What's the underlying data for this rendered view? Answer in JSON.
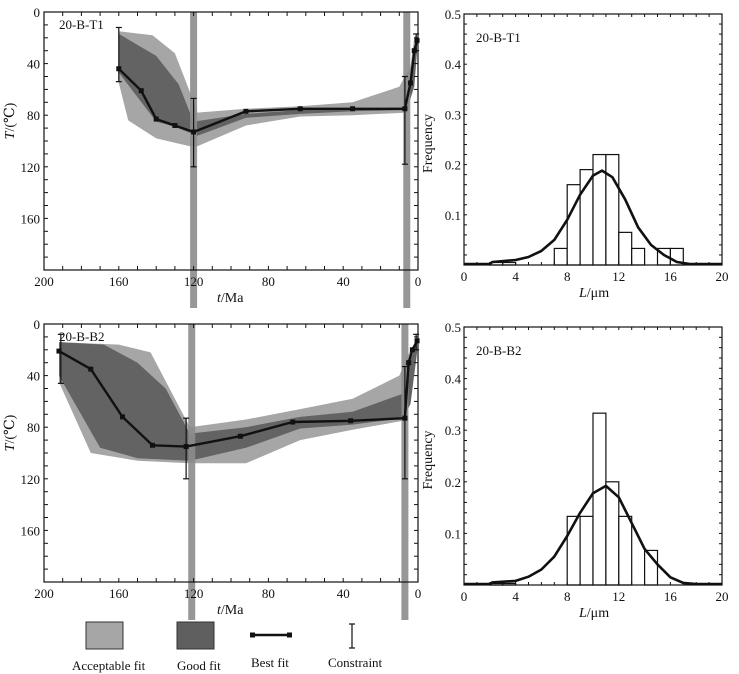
{
  "chart_data": [
    {
      "id": "tt_T1",
      "type": "line",
      "panel_label": "20-B-T1",
      "xlabel_italic": "t",
      "xlabel_rest": "/Ma",
      "ylabel_italic": "T",
      "ylabel_rest": "/(℃)",
      "xlim": [
        200,
        0
      ],
      "ylim": [
        0,
        200
      ],
      "x_ticks": [
        200,
        160,
        120,
        80,
        40,
        0
      ],
      "y_ticks": [
        0,
        40,
        80,
        120,
        160
      ],
      "grid": false,
      "vertical_bands": [
        120,
        6
      ],
      "acceptable_fit_envelope": {
        "upper": [
          [
            160,
            15
          ],
          [
            142,
            18
          ],
          [
            130,
            32
          ],
          [
            122,
            62
          ],
          [
            118,
            78
          ],
          [
            92,
            75
          ],
          [
            63,
            73
          ],
          [
            35,
            70
          ],
          [
            10,
            58
          ],
          [
            4,
            42
          ],
          [
            2,
            20
          ],
          [
            0.5,
            17
          ]
        ],
        "lower": [
          [
            0.5,
            25
          ],
          [
            2,
            55
          ],
          [
            6,
            78
          ],
          [
            35,
            80
          ],
          [
            63,
            81
          ],
          [
            92,
            88
          ],
          [
            118,
            104
          ],
          [
            122,
            104
          ],
          [
            140,
            98
          ],
          [
            155,
            84
          ],
          [
            160,
            55
          ]
        ]
      },
      "good_fit_envelope": {
        "upper": [
          [
            160,
            17
          ],
          [
            140,
            34
          ],
          [
            128,
            56
          ],
          [
            120,
            85
          ],
          [
            92,
            79
          ],
          [
            63,
            76
          ],
          [
            35,
            75
          ],
          [
            8,
            74
          ],
          [
            4,
            50
          ],
          [
            2,
            28
          ],
          [
            0.5,
            22
          ]
        ],
        "lower": [
          [
            0.5,
            30
          ],
          [
            2,
            58
          ],
          [
            6,
            76
          ],
          [
            35,
            77
          ],
          [
            63,
            79
          ],
          [
            92,
            82
          ],
          [
            118,
            96
          ],
          [
            130,
            89
          ],
          [
            140,
            85
          ],
          [
            160,
            47
          ]
        ]
      },
      "best_fit": [
        [
          160,
          44
        ],
        [
          148,
          61
        ],
        [
          140,
          83
        ],
        [
          130,
          88
        ],
        [
          120,
          93
        ],
        [
          92,
          77
        ],
        [
          63,
          75
        ],
        [
          35,
          75
        ],
        [
          7,
          75
        ],
        [
          4,
          55
        ],
        [
          2,
          30
        ],
        [
          0.5,
          22
        ]
      ],
      "constraints": [
        {
          "t": 160,
          "T_min": 12,
          "T_max": 54
        },
        {
          "t": 120,
          "T_min": 67,
          "T_max": 120
        },
        {
          "t": 7,
          "T_min": 50,
          "T_max": 118
        },
        {
          "t": 1,
          "T_min": 17,
          "T_max": 30
        }
      ]
    },
    {
      "id": "tt_B2",
      "type": "line",
      "panel_label": "20-B-B2",
      "xlabel_italic": "t",
      "xlabel_rest": "/Ma",
      "ylabel_italic": "T",
      "ylabel_rest": "/(℃)",
      "xlim": [
        200,
        0
      ],
      "ylim": [
        0,
        200
      ],
      "x_ticks": [
        200,
        160,
        120,
        80,
        40,
        0
      ],
      "y_ticks": [
        0,
        40,
        80,
        120,
        160
      ],
      "grid": false,
      "vertical_bands": [
        121,
        7
      ],
      "acceptable_fit_envelope": {
        "upper": [
          [
            192,
            14
          ],
          [
            160,
            16
          ],
          [
            143,
            22
          ],
          [
            130,
            58
          ],
          [
            122,
            80
          ],
          [
            92,
            74
          ],
          [
            63,
            66
          ],
          [
            35,
            58
          ],
          [
            10,
            40
          ],
          [
            4,
            20
          ],
          [
            0.5,
            12
          ]
        ],
        "lower": [
          [
            0.5,
            20
          ],
          [
            4,
            60
          ],
          [
            8,
            75
          ],
          [
            35,
            82
          ],
          [
            63,
            90
          ],
          [
            92,
            108
          ],
          [
            122,
            108
          ],
          [
            150,
            106
          ],
          [
            175,
            100
          ],
          [
            192,
            45
          ]
        ]
      },
      "good_fit_envelope": {
        "upper": [
          [
            192,
            14
          ],
          [
            168,
            16
          ],
          [
            150,
            30
          ],
          [
            135,
            50
          ],
          [
            122,
            85
          ],
          [
            92,
            80
          ],
          [
            63,
            72
          ],
          [
            35,
            68
          ],
          [
            8,
            54
          ],
          [
            4,
            28
          ],
          [
            0.5,
            14
          ]
        ],
        "lower": [
          [
            0.5,
            22
          ],
          [
            4,
            62
          ],
          [
            8,
            73
          ],
          [
            35,
            78
          ],
          [
            63,
            81
          ],
          [
            92,
            96
          ],
          [
            122,
            106
          ],
          [
            150,
            104
          ],
          [
            170,
            96
          ],
          [
            192,
            40
          ]
        ]
      },
      "best_fit": [
        [
          192,
          21
        ],
        [
          175,
          35
        ],
        [
          158,
          72
        ],
        [
          142,
          94
        ],
        [
          124,
          95
        ],
        [
          95,
          87
        ],
        [
          67,
          76
        ],
        [
          36,
          75
        ],
        [
          7,
          73
        ],
        [
          5,
          30
        ],
        [
          3,
          20
        ],
        [
          0.5,
          13
        ]
      ],
      "constraints": [
        {
          "t": 191,
          "T_min": 8,
          "T_max": 46
        },
        {
          "t": 124,
          "T_min": 73,
          "T_max": 120
        },
        {
          "t": 7,
          "T_min": 33,
          "T_max": 120
        },
        {
          "t": 1,
          "T_min": 8,
          "T_max": 20
        }
      ]
    },
    {
      "id": "hist_T1",
      "type": "bar",
      "panel_label": "20-B-T1",
      "xlabel_italic": "L",
      "xlabel_rest": "/μm",
      "ylabel": "Frequency",
      "xlim": [
        0,
        20
      ],
      "ylim": [
        0,
        0.5
      ],
      "x_ticks": [
        0,
        4,
        8,
        12,
        16,
        20
      ],
      "y_ticks": [
        0.1,
        0.2,
        0.3,
        0.4,
        0.5
      ],
      "bin_edges": [
        2,
        3,
        4,
        5,
        6,
        7,
        8,
        9,
        10,
        11,
        12,
        13,
        14,
        15,
        16,
        17
      ],
      "values": [
        0.005,
        0.005,
        0,
        0,
        0,
        0.033,
        0.16,
        0.19,
        0.22,
        0.22,
        0.065,
        0.033,
        0,
        0.033,
        0.033
      ],
      "fit_curve": [
        [
          0,
          0.002
        ],
        [
          2,
          0.002
        ],
        [
          2.2,
          0.006
        ],
        [
          4,
          0.01
        ],
        [
          5,
          0.016
        ],
        [
          6,
          0.028
        ],
        [
          7,
          0.05
        ],
        [
          8,
          0.09
        ],
        [
          9,
          0.14
        ],
        [
          10,
          0.178
        ],
        [
          10.7,
          0.188
        ],
        [
          11.5,
          0.175
        ],
        [
          12.5,
          0.13
        ],
        [
          13.5,
          0.075
        ],
        [
          14.5,
          0.04
        ],
        [
          15.5,
          0.02
        ],
        [
          16.5,
          0.006
        ],
        [
          17.5,
          0.002
        ],
        [
          20,
          0.002
        ]
      ]
    },
    {
      "id": "hist_B2",
      "type": "bar",
      "panel_label": "20-B-B2",
      "xlabel_italic": "L",
      "xlabel_rest": "/μm",
      "ylabel": "Frequency",
      "xlim": [
        0,
        20
      ],
      "ylim": [
        0,
        0.5
      ],
      "x_ticks": [
        0,
        4,
        8,
        12,
        16,
        20
      ],
      "y_ticks": [
        0.1,
        0.2,
        0.3,
        0.4,
        0.5
      ],
      "bin_edges": [
        2,
        3,
        4,
        5,
        6,
        7,
        8,
        9,
        10,
        11,
        12,
        13,
        14,
        15
      ],
      "values": [
        0.003,
        0.003,
        0,
        0,
        0,
        0,
        0.133,
        0.133,
        0.333,
        0.2,
        0.133,
        0,
        0.067
      ],
      "fit_curve": [
        [
          0,
          0.002
        ],
        [
          2,
          0.002
        ],
        [
          2.2,
          0.005
        ],
        [
          4,
          0.008
        ],
        [
          5,
          0.016
        ],
        [
          6,
          0.03
        ],
        [
          7,
          0.055
        ],
        [
          8,
          0.095
        ],
        [
          9,
          0.14
        ],
        [
          10,
          0.178
        ],
        [
          11,
          0.192
        ],
        [
          12,
          0.17
        ],
        [
          13,
          0.12
        ],
        [
          14,
          0.07
        ],
        [
          15,
          0.04
        ],
        [
          16,
          0.015
        ],
        [
          17,
          0.004
        ],
        [
          18,
          0.002
        ],
        [
          20,
          0.002
        ]
      ]
    }
  ],
  "legend": {
    "items": [
      {
        "label": "Acceptable fit",
        "kind": "acceptable-swatch"
      },
      {
        "label": "Good fit",
        "kind": "good-swatch"
      },
      {
        "label": "Best fit",
        "kind": "best-line"
      },
      {
        "label": "Constraint",
        "kind": "constraint-bar"
      }
    ]
  },
  "colors": {
    "acceptable": "#a6a6a6",
    "good": "#5f5f5f",
    "band": "#8c8c8c",
    "line": "#111111"
  }
}
